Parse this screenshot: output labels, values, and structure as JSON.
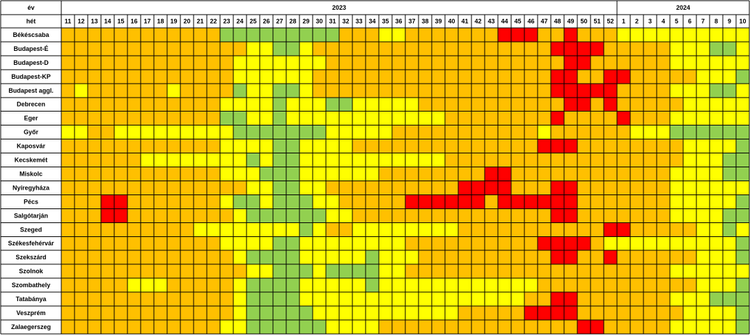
{
  "chart_data": {
    "type": "heatmap",
    "row_header_year": "év",
    "row_header_week": "hét",
    "year_groups": [
      {
        "year": "2023",
        "weeks": 42
      },
      {
        "year": "2024",
        "weeks": 10
      }
    ],
    "weeks": [
      "11",
      "12",
      "13",
      "14",
      "15",
      "16",
      "17",
      "18",
      "19",
      "20",
      "21",
      "22",
      "23",
      "24",
      "25",
      "26",
      "27",
      "28",
      "29",
      "30",
      "31",
      "32",
      "33",
      "34",
      "35",
      "36",
      "37",
      "38",
      "39",
      "40",
      "41",
      "42",
      "43",
      "44",
      "45",
      "46",
      "47",
      "48",
      "49",
      "50",
      "51",
      "52",
      "1",
      "2",
      "3",
      "4",
      "5",
      "6",
      "7",
      "8",
      "9",
      "10"
    ],
    "colors": {
      "1": "#92D050",
      "2": "#FFFF00",
      "3": "#FFC000",
      "4": "#FF0000"
    },
    "rows": [
      {
        "city": "Békéscsaba",
        "levels": [
          3,
          3,
          3,
          3,
          3,
          3,
          3,
          3,
          3,
          3,
          3,
          3,
          1,
          1,
          1,
          1,
          1,
          1,
          1,
          1,
          1,
          3,
          3,
          3,
          2,
          2,
          3,
          3,
          3,
          3,
          3,
          3,
          3,
          4,
          4,
          4,
          3,
          3,
          4,
          3,
          3,
          3,
          2,
          2,
          2,
          2,
          2,
          2,
          2,
          2,
          2,
          2
        ]
      },
      {
        "city": "Budapest-É",
        "levels": [
          3,
          3,
          3,
          3,
          3,
          3,
          3,
          3,
          3,
          3,
          3,
          3,
          3,
          3,
          2,
          2,
          1,
          1,
          2,
          3,
          3,
          3,
          3,
          3,
          3,
          3,
          3,
          3,
          3,
          3,
          3,
          3,
          3,
          3,
          3,
          3,
          3,
          4,
          4,
          4,
          4,
          3,
          3,
          3,
          3,
          3,
          2,
          2,
          2,
          1,
          1,
          2
        ]
      },
      {
        "city": "Budapest-D",
        "levels": [
          3,
          3,
          3,
          3,
          3,
          3,
          3,
          3,
          3,
          3,
          3,
          3,
          3,
          2,
          2,
          2,
          2,
          2,
          2,
          2,
          3,
          3,
          3,
          3,
          3,
          3,
          3,
          3,
          3,
          3,
          3,
          3,
          3,
          3,
          3,
          3,
          3,
          3,
          4,
          4,
          3,
          3,
          3,
          3,
          3,
          3,
          2,
          2,
          2,
          2,
          2,
          2
        ]
      },
      {
        "city": "Budapest-KP",
        "levels": [
          3,
          3,
          3,
          3,
          3,
          3,
          3,
          3,
          3,
          3,
          3,
          3,
          3,
          2,
          2,
          2,
          2,
          2,
          2,
          3,
          3,
          3,
          3,
          3,
          3,
          3,
          3,
          3,
          3,
          3,
          3,
          3,
          3,
          3,
          3,
          3,
          3,
          4,
          4,
          3,
          3,
          4,
          4,
          3,
          3,
          3,
          3,
          3,
          2,
          2,
          2,
          1
        ]
      },
      {
        "city": "Budapest aggl.",
        "levels": [
          3,
          2,
          3,
          3,
          3,
          3,
          3,
          3,
          2,
          3,
          3,
          3,
          3,
          1,
          2,
          2,
          1,
          1,
          2,
          3,
          3,
          3,
          3,
          3,
          3,
          3,
          3,
          3,
          3,
          3,
          3,
          3,
          3,
          3,
          3,
          3,
          3,
          4,
          4,
          4,
          4,
          4,
          3,
          3,
          3,
          3,
          2,
          2,
          2,
          1,
          1,
          2
        ]
      },
      {
        "city": "Debrecen",
        "levels": [
          3,
          3,
          3,
          3,
          3,
          3,
          3,
          3,
          3,
          3,
          3,
          3,
          2,
          2,
          2,
          2,
          1,
          2,
          2,
          2,
          1,
          1,
          2,
          2,
          2,
          2,
          2,
          3,
          3,
          3,
          3,
          3,
          3,
          3,
          3,
          3,
          3,
          3,
          4,
          4,
          3,
          4,
          3,
          3,
          3,
          3,
          3,
          2,
          2,
          2,
          2,
          2
        ]
      },
      {
        "city": "Eger",
        "levels": [
          3,
          3,
          3,
          3,
          3,
          3,
          3,
          3,
          3,
          3,
          3,
          3,
          1,
          1,
          2,
          2,
          1,
          2,
          2,
          2,
          2,
          2,
          2,
          2,
          2,
          2,
          2,
          2,
          2,
          3,
          3,
          3,
          3,
          3,
          3,
          3,
          3,
          4,
          3,
          3,
          3,
          3,
          4,
          3,
          3,
          3,
          2,
          2,
          2,
          2,
          2,
          2
        ]
      },
      {
        "city": "Győr",
        "levels": [
          2,
          2,
          3,
          3,
          2,
          2,
          2,
          2,
          2,
          2,
          2,
          2,
          2,
          1,
          1,
          1,
          1,
          1,
          1,
          1,
          2,
          2,
          2,
          2,
          2,
          3,
          3,
          3,
          3,
          3,
          3,
          3,
          3,
          3,
          3,
          3,
          2,
          3,
          3,
          3,
          3,
          3,
          3,
          2,
          2,
          2,
          1,
          1,
          1,
          1,
          1,
          1
        ]
      },
      {
        "city": "Kaposvár",
        "levels": [
          3,
          3,
          3,
          3,
          3,
          3,
          3,
          3,
          3,
          3,
          3,
          3,
          2,
          2,
          2,
          2,
          1,
          1,
          2,
          2,
          2,
          2,
          3,
          3,
          3,
          3,
          3,
          3,
          3,
          3,
          3,
          3,
          3,
          3,
          3,
          3,
          4,
          4,
          4,
          3,
          3,
          3,
          3,
          3,
          3,
          3,
          3,
          2,
          2,
          2,
          2,
          1
        ]
      },
      {
        "city": "Kecskemét",
        "levels": [
          3,
          3,
          3,
          3,
          3,
          3,
          2,
          2,
          2,
          2,
          2,
          2,
          2,
          2,
          1,
          2,
          1,
          1,
          2,
          2,
          2,
          2,
          2,
          2,
          2,
          2,
          2,
          2,
          2,
          3,
          3,
          3,
          3,
          3,
          3,
          3,
          3,
          3,
          3,
          3,
          3,
          3,
          3,
          3,
          3,
          3,
          3,
          2,
          2,
          2,
          1,
          1
        ]
      },
      {
        "city": "Miskolc",
        "levels": [
          3,
          3,
          3,
          3,
          3,
          3,
          3,
          3,
          3,
          3,
          3,
          3,
          2,
          2,
          2,
          1,
          1,
          1,
          2,
          2,
          2,
          2,
          2,
          2,
          3,
          3,
          3,
          3,
          3,
          3,
          3,
          3,
          4,
          4,
          3,
          3,
          3,
          3,
          3,
          3,
          3,
          3,
          3,
          3,
          3,
          3,
          2,
          2,
          2,
          2,
          1,
          1
        ]
      },
      {
        "city": "Nyíregyháza",
        "levels": [
          3,
          3,
          3,
          3,
          3,
          3,
          3,
          3,
          3,
          3,
          3,
          3,
          3,
          3,
          2,
          2,
          1,
          1,
          2,
          2,
          3,
          3,
          3,
          3,
          3,
          3,
          3,
          3,
          3,
          3,
          4,
          4,
          4,
          4,
          3,
          3,
          3,
          4,
          4,
          3,
          3,
          3,
          3,
          3,
          3,
          3,
          2,
          2,
          2,
          2,
          2,
          2
        ]
      },
      {
        "city": "Pécs",
        "levels": [
          3,
          3,
          3,
          4,
          4,
          3,
          3,
          3,
          3,
          3,
          3,
          3,
          2,
          1,
          1,
          2,
          1,
          1,
          1,
          2,
          2,
          3,
          3,
          3,
          3,
          3,
          4,
          4,
          4,
          4,
          4,
          4,
          3,
          4,
          4,
          4,
          4,
          4,
          4,
          3,
          3,
          3,
          3,
          3,
          3,
          3,
          2,
          2,
          2,
          2,
          2,
          1
        ]
      },
      {
        "city": "Salgótarján",
        "levels": [
          3,
          3,
          3,
          4,
          4,
          3,
          3,
          3,
          3,
          3,
          3,
          3,
          3,
          2,
          1,
          1,
          1,
          1,
          1,
          1,
          2,
          2,
          3,
          3,
          3,
          3,
          3,
          3,
          3,
          3,
          3,
          3,
          3,
          3,
          3,
          3,
          3,
          4,
          4,
          3,
          3,
          3,
          3,
          3,
          3,
          3,
          2,
          2,
          2,
          2,
          1,
          1
        ]
      },
      {
        "city": "Szeged",
        "levels": [
          3,
          3,
          3,
          3,
          3,
          3,
          3,
          3,
          3,
          3,
          2,
          2,
          2,
          2,
          2,
          2,
          2,
          2,
          1,
          2,
          3,
          3,
          2,
          2,
          2,
          2,
          2,
          2,
          2,
          2,
          3,
          3,
          3,
          3,
          3,
          3,
          3,
          3,
          3,
          3,
          3,
          4,
          4,
          3,
          3,
          3,
          3,
          3,
          2,
          2,
          1,
          2
        ]
      },
      {
        "city": "Székesfehérvár",
        "levels": [
          3,
          3,
          3,
          3,
          3,
          3,
          3,
          3,
          3,
          3,
          3,
          3,
          2,
          2,
          2,
          2,
          1,
          1,
          2,
          2,
          2,
          2,
          2,
          2,
          2,
          2,
          3,
          3,
          3,
          3,
          3,
          3,
          3,
          3,
          3,
          3,
          4,
          4,
          4,
          4,
          3,
          2,
          2,
          2,
          2,
          2,
          2,
          2,
          2,
          2,
          2,
          1
        ]
      },
      {
        "city": "Szekszárd",
        "levels": [
          3,
          3,
          3,
          3,
          3,
          3,
          3,
          3,
          3,
          3,
          3,
          3,
          3,
          2,
          1,
          1,
          1,
          1,
          2,
          2,
          2,
          2,
          2,
          1,
          2,
          2,
          2,
          3,
          3,
          3,
          3,
          3,
          3,
          3,
          3,
          3,
          3,
          4,
          4,
          3,
          3,
          4,
          3,
          3,
          3,
          3,
          3,
          3,
          2,
          2,
          2,
          1
        ]
      },
      {
        "city": "Szolnok",
        "levels": [
          3,
          3,
          3,
          3,
          3,
          3,
          3,
          3,
          3,
          3,
          3,
          3,
          3,
          3,
          2,
          2,
          1,
          1,
          1,
          2,
          1,
          1,
          1,
          1,
          2,
          2,
          3,
          3,
          3,
          3,
          3,
          3,
          3,
          3,
          3,
          3,
          3,
          3,
          3,
          3,
          3,
          3,
          3,
          3,
          3,
          3,
          2,
          2,
          2,
          2,
          2,
          2
        ]
      },
      {
        "city": "Szombathely",
        "levels": [
          3,
          3,
          3,
          3,
          3,
          2,
          2,
          2,
          3,
          3,
          3,
          3,
          3,
          2,
          1,
          1,
          1,
          1,
          2,
          2,
          2,
          2,
          2,
          1,
          2,
          2,
          2,
          2,
          2,
          2,
          2,
          2,
          2,
          2,
          2,
          2,
          3,
          3,
          3,
          3,
          3,
          3,
          3,
          3,
          3,
          3,
          3,
          3,
          2,
          2,
          2,
          1
        ]
      },
      {
        "city": "Tatabánya",
        "levels": [
          3,
          3,
          3,
          3,
          3,
          3,
          3,
          3,
          3,
          3,
          3,
          3,
          3,
          2,
          1,
          1,
          1,
          1,
          2,
          2,
          2,
          2,
          2,
          2,
          2,
          2,
          2,
          2,
          2,
          2,
          2,
          2,
          2,
          2,
          2,
          3,
          3,
          4,
          4,
          3,
          3,
          3,
          3,
          3,
          3,
          3,
          2,
          2,
          2,
          1,
          1,
          1
        ]
      },
      {
        "city": "Veszprém",
        "levels": [
          3,
          3,
          3,
          3,
          3,
          3,
          3,
          3,
          3,
          3,
          3,
          3,
          3,
          2,
          1,
          1,
          1,
          1,
          1,
          2,
          2,
          2,
          2,
          2,
          2,
          2,
          2,
          2,
          2,
          2,
          3,
          3,
          3,
          3,
          3,
          4,
          4,
          4,
          4,
          3,
          3,
          3,
          3,
          3,
          3,
          3,
          3,
          2,
          2,
          2,
          2,
          1
        ]
      },
      {
        "city": "Zalaegerszeg",
        "levels": [
          3,
          3,
          3,
          3,
          3,
          3,
          3,
          3,
          3,
          3,
          3,
          3,
          2,
          2,
          1,
          1,
          1,
          1,
          1,
          1,
          2,
          2,
          2,
          2,
          3,
          3,
          3,
          3,
          3,
          3,
          3,
          3,
          3,
          3,
          3,
          3,
          3,
          3,
          3,
          4,
          4,
          3,
          3,
          3,
          3,
          3,
          2,
          2,
          2,
          2,
          2,
          1
        ]
      }
    ]
  }
}
